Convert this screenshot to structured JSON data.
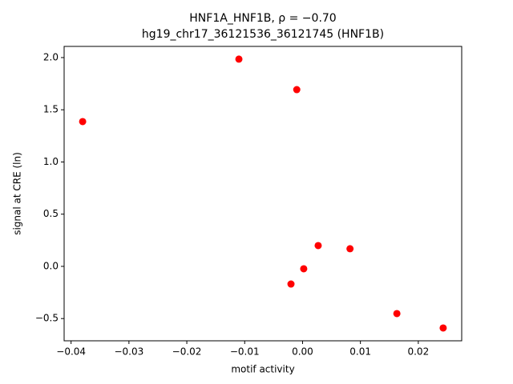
{
  "chart_data": {
    "type": "scatter",
    "title": "HNF1A_HNF1B, ρ = −0.70",
    "subtitle": "hg19_chr17_36121536_36121745 (HNF1B)",
    "x_label": "motif activity",
    "y_label": "signal at CRE (ln)",
    "color": "#ff0000",
    "x": [
      -0.038,
      -0.011,
      -0.001,
      0.0027,
      0.0082,
      0.0002,
      -0.002,
      0.0163,
      0.0243
    ],
    "values": [
      1.387,
      1.985,
      1.693,
      0.199,
      0.169,
      -0.023,
      -0.169,
      -0.452,
      -0.59
    ],
    "xlim": [
      -0.0412,
      0.0275
    ],
    "ylim": [
      -0.713,
      2.107
    ],
    "xticks": [
      {
        "value": -0.04,
        "label": "−0.04"
      },
      {
        "value": -0.03,
        "label": "−0.03"
      },
      {
        "value": -0.02,
        "label": "−0.02"
      },
      {
        "value": -0.01,
        "label": "−0.01"
      },
      {
        "value": 0,
        "label": "0.00"
      },
      0.01,
      0.02
    ],
    "yticks": [
      {
        "value": -0.5,
        "label": "−0.5"
      },
      {
        "value": 0,
        "label": "0.0"
      },
      0.5,
      {
        "value": 1,
        "label": "1.0"
      },
      1.5,
      {
        "value": 2,
        "label": "2.0"
      }
    ]
  }
}
